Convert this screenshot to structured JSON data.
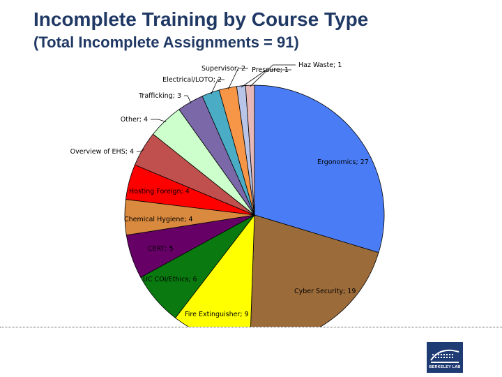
{
  "header": {
    "title": "Incomplete Training by Course Type",
    "subtitle": "(Total Incomplete Assignments = 91)"
  },
  "logo": {
    "text": "BERKELEY LAB"
  },
  "chart_data": {
    "type": "pie",
    "title": "Incomplete Training by Course Type",
    "subtitle": "(Total Incomplete Assignments = 91)",
    "total": 91,
    "slices": [
      {
        "label": "Ergonomics; 27",
        "category": "Ergonomics",
        "value": 27,
        "color": "#4a7df5"
      },
      {
        "label": "Cyber Security; 19",
        "category": "Cyber Security",
        "value": 19,
        "color": "#9c6b3a"
      },
      {
        "label": "Fire Extinguisher; 9",
        "category": "Fire Extinguisher",
        "value": 9,
        "color": "#ffff00"
      },
      {
        "label": "UC COI/Ethics; 6",
        "category": "UC COI/Ethics",
        "value": 6,
        "color": "#0a7a10"
      },
      {
        "label": "CERT; 5",
        "category": "CERT",
        "value": 5,
        "color": "#660066"
      },
      {
        "label": "Chemical Hygiene; 4",
        "category": "Chemical Hygiene",
        "value": 4,
        "color": "#d98a3e"
      },
      {
        "label": "Hosting Foreign; 4",
        "category": "Hosting Foreign",
        "value": 4,
        "color": "#ff0000"
      },
      {
        "label": "Overview of EHS; 4",
        "category": "Overview of EHS",
        "value": 4,
        "color": "#c0504d"
      },
      {
        "label": "Other; 4",
        "category": "Other",
        "value": 4,
        "color": "#ccffcc"
      },
      {
        "label": "Trafficking; 3",
        "category": "Trafficking",
        "value": 3,
        "color": "#7b68a8"
      },
      {
        "label": "Electrical/LOTO; 2",
        "category": "Electrical/LOTO",
        "value": 2,
        "color": "#4bacc6"
      },
      {
        "label": "Supervisor; 2",
        "category": "Supervisor",
        "value": 2,
        "color": "#f79646"
      },
      {
        "label": "Pressure; 1",
        "category": "Pressure",
        "value": 1,
        "color": "#b8c4e8"
      },
      {
        "label": "Haz Waste; 1",
        "category": "Haz Waste",
        "value": 1,
        "color": "#e6b8b7"
      }
    ]
  }
}
